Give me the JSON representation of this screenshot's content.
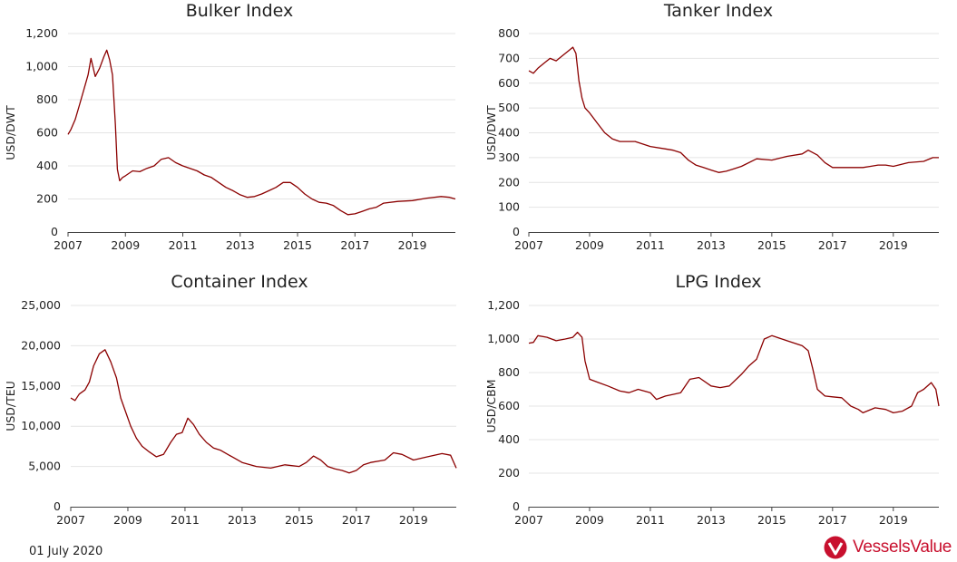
{
  "date_label": "01 July 2020",
  "brand": {
    "name": "VesselsValue",
    "color": "#c8102e"
  },
  "line_color": "#8b0000",
  "chart_data": [
    {
      "type": "line",
      "title": "Bulker Index",
      "ylabel": "USD/DWT",
      "xlim": [
        2007,
        2020.5
      ],
      "ylim": [
        0,
        1200
      ],
      "yticks": [
        0,
        200,
        400,
        600,
        800,
        1000,
        1200
      ],
      "ytick_labels": [
        "0",
        "200",
        "400",
        "600",
        "800",
        "1,000",
        "1,200"
      ],
      "xticks": [
        2007,
        2009,
        2011,
        2013,
        2015,
        2017,
        2019
      ],
      "xtick_labels": [
        "2007",
        "2009",
        "2011",
        "2013",
        "2015",
        "2017",
        "2019"
      ],
      "series": [
        {
          "x": [
            2007.0,
            2007.1,
            2007.25,
            2007.4,
            2007.55,
            2007.7,
            2007.8,
            2007.95,
            2008.1,
            2008.25,
            2008.35,
            2008.45,
            2008.55,
            2008.65,
            2008.72,
            2008.8,
            2008.9,
            2009.0,
            2009.25,
            2009.5,
            2009.75,
            2010.0,
            2010.25,
            2010.5,
            2010.75,
            2011.0,
            2011.25,
            2011.5,
            2011.75,
            2012.0,
            2012.25,
            2012.5,
            2012.75,
            2013.0,
            2013.25,
            2013.5,
            2013.75,
            2014.0,
            2014.25,
            2014.5,
            2014.75,
            2015.0,
            2015.25,
            2015.5,
            2015.75,
            2016.0,
            2016.25,
            2016.5,
            2016.75,
            2017.0,
            2017.25,
            2017.5,
            2017.75,
            2018.0,
            2018.5,
            2019.0,
            2019.5,
            2020.0,
            2020.3,
            2020.5
          ],
          "y": [
            590,
            620,
            680,
            770,
            860,
            950,
            1050,
            940,
            990,
            1060,
            1100,
            1040,
            950,
            650,
            380,
            310,
            330,
            340,
            370,
            365,
            385,
            400,
            440,
            450,
            420,
            400,
            385,
            370,
            345,
            330,
            300,
            270,
            250,
            225,
            210,
            215,
            230,
            250,
            270,
            300,
            300,
            270,
            230,
            200,
            180,
            175,
            160,
            130,
            105,
            110,
            125,
            140,
            150,
            175,
            185,
            190,
            205,
            215,
            210,
            200
          ]
        }
      ]
    },
    {
      "type": "line",
      "title": "Tanker Index",
      "ylabel": "USD/DWT",
      "xlim": [
        2007,
        2020.5
      ],
      "ylim": [
        0,
        800
      ],
      "yticks": [
        0,
        100,
        200,
        300,
        400,
        500,
        600,
        700,
        800
      ],
      "ytick_labels": [
        "0",
        "100",
        "200",
        "300",
        "400",
        "500",
        "600",
        "700",
        "800"
      ],
      "xticks": [
        2007,
        2009,
        2011,
        2013,
        2015,
        2017,
        2019
      ],
      "xtick_labels": [
        "2007",
        "2009",
        "2011",
        "2013",
        "2015",
        "2017",
        "2019"
      ],
      "series": [
        {
          "x": [
            2007.0,
            2007.15,
            2007.3,
            2007.5,
            2007.7,
            2007.9,
            2008.1,
            2008.3,
            2008.45,
            2008.55,
            2008.65,
            2008.75,
            2008.85,
            2009.0,
            2009.25,
            2009.5,
            2009.75,
            2010.0,
            2010.5,
            2011.0,
            2011.5,
            2011.75,
            2012.0,
            2012.25,
            2012.5,
            2012.75,
            2013.0,
            2013.25,
            2013.5,
            2013.75,
            2014.0,
            2014.5,
            2015.0,
            2015.5,
            2016.0,
            2016.2,
            2016.5,
            2016.75,
            2017.0,
            2017.5,
            2018.0,
            2018.25,
            2018.5,
            2018.75,
            2019.0,
            2019.5,
            2020.0,
            2020.3,
            2020.5
          ],
          "y": [
            650,
            640,
            660,
            680,
            700,
            690,
            710,
            730,
            745,
            720,
            610,
            540,
            500,
            480,
            440,
            400,
            375,
            365,
            365,
            345,
            335,
            330,
            320,
            290,
            270,
            260,
            250,
            240,
            245,
            255,
            265,
            295,
            290,
            305,
            315,
            330,
            310,
            280,
            260,
            260,
            260,
            265,
            270,
            270,
            265,
            280,
            285,
            300,
            300
          ]
        }
      ]
    },
    {
      "type": "line",
      "title": "Container Index",
      "ylabel": "USD/TEU",
      "xlim": [
        2007,
        2020.5
      ],
      "ylim": [
        0,
        25000
      ],
      "yticks": [
        0,
        5000,
        10000,
        15000,
        20000,
        25000
      ],
      "ytick_labels": [
        "0",
        "5,000",
        "10,000",
        "15,000",
        "20,000",
        "25,000"
      ],
      "xticks": [
        2007,
        2009,
        2011,
        2013,
        2015,
        2017,
        2019
      ],
      "xtick_labels": [
        "2007",
        "2009",
        "2011",
        "2013",
        "2015",
        "2017",
        "2019"
      ],
      "series": [
        {
          "x": [
            2007.0,
            2007.15,
            2007.3,
            2007.5,
            2007.65,
            2007.8,
            2008.0,
            2008.2,
            2008.4,
            2008.6,
            2008.75,
            2008.9,
            2009.1,
            2009.3,
            2009.5,
            2009.75,
            2010.0,
            2010.25,
            2010.5,
            2010.7,
            2010.9,
            2011.1,
            2011.3,
            2011.5,
            2011.75,
            2012.0,
            2012.25,
            2012.5,
            2012.75,
            2013.0,
            2013.5,
            2014.0,
            2014.5,
            2015.0,
            2015.25,
            2015.5,
            2015.75,
            2016.0,
            2016.25,
            2016.5,
            2016.75,
            2017.0,
            2017.25,
            2017.5,
            2018.0,
            2018.3,
            2018.6,
            2019.0,
            2019.5,
            2020.0,
            2020.3,
            2020.5
          ],
          "y": [
            13500,
            13200,
            14000,
            14500,
            15500,
            17500,
            19000,
            19500,
            18000,
            16000,
            13500,
            12000,
            10000,
            8500,
            7500,
            6800,
            6200,
            6500,
            8000,
            9000,
            9200,
            11000,
            10200,
            9000,
            8000,
            7300,
            7000,
            6500,
            6000,
            5500,
            5000,
            4800,
            5200,
            5000,
            5500,
            6300,
            5800,
            5000,
            4700,
            4500,
            4200,
            4500,
            5200,
            5500,
            5800,
            6700,
            6500,
            5800,
            6200,
            6600,
            6400,
            4800
          ]
        }
      ]
    },
    {
      "type": "line",
      "title": "LPG Index",
      "ylabel": "USD/CBM",
      "xlim": [
        2007,
        2020.5
      ],
      "ylim": [
        0,
        1200
      ],
      "yticks": [
        0,
        200,
        400,
        600,
        800,
        1000,
        1200
      ],
      "ytick_labels": [
        "0",
        "200",
        "400",
        "600",
        "800",
        "1,000",
        "1,200"
      ],
      "xticks": [
        2007,
        2009,
        2011,
        2013,
        2015,
        2017,
        2019
      ],
      "xtick_labels": [
        "2007",
        "2009",
        "2011",
        "2013",
        "2015",
        "2017",
        "2019"
      ],
      "series": [
        {
          "x": [
            2007.0,
            2007.15,
            2007.3,
            2007.6,
            2007.9,
            2008.2,
            2008.45,
            2008.6,
            2008.75,
            2008.85,
            2009.0,
            2009.3,
            2009.6,
            2010.0,
            2010.3,
            2010.6,
            2011.0,
            2011.2,
            2011.5,
            2011.75,
            2012.0,
            2012.3,
            2012.6,
            2013.0,
            2013.3,
            2013.6,
            2014.0,
            2014.25,
            2014.5,
            2014.75,
            2015.0,
            2015.5,
            2016.0,
            2016.2,
            2016.35,
            2016.5,
            2016.75,
            2017.0,
            2017.3,
            2017.6,
            2017.85,
            2018.0,
            2018.4,
            2018.75,
            2019.0,
            2019.3,
            2019.6,
            2019.8,
            2020.0,
            2020.25,
            2020.4,
            2020.5
          ],
          "y": [
            975,
            980,
            1020,
            1010,
            990,
            1000,
            1010,
            1040,
            1010,
            870,
            760,
            740,
            720,
            690,
            680,
            700,
            680,
            640,
            660,
            670,
            680,
            760,
            770,
            720,
            710,
            720,
            790,
            840,
            880,
            1000,
            1020,
            990,
            960,
            930,
            820,
            700,
            660,
            655,
            650,
            600,
            580,
            560,
            590,
            580,
            560,
            570,
            600,
            680,
            700,
            740,
            700,
            600
          ]
        }
      ]
    }
  ]
}
